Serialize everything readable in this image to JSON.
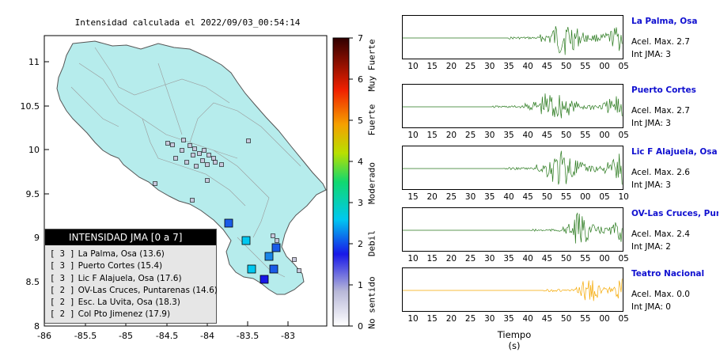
{
  "map": {
    "title": "Intensidad calculada el 2022/09/03_00:54:14",
    "lon_ticks": [
      "-86",
      "-85.5",
      "-85",
      "-84.5",
      "-84",
      "-83.5",
      "-83"
    ],
    "lat_ticks": [
      "11",
      "10.5",
      "10",
      "9.5",
      "9",
      "8.5",
      "8"
    ],
    "legend": {
      "title": "INTENSIDAD JMA [0 a 7]",
      "items": [
        {
          "level": "[ 3 ]",
          "station": "La Palma, Osa (13.6)"
        },
        {
          "level": "[ 3 ]",
          "station": "Puerto Cortes (15.4)"
        },
        {
          "level": "[ 3 ]",
          "station": "Lic F Alajuela, Osa (17.6)"
        },
        {
          "level": "[ 2 ]",
          "station": "OV-Las Cruces, Puntarenas (14.6)"
        },
        {
          "level": "[ 2 ]",
          "station": "Esc. La Uvita, Osa (18.3)"
        },
        {
          "level": "[ 2 ]",
          "station": "Col Pto Jimenez (17.9)"
        }
      ]
    },
    "land_color": "#b6ecec"
  },
  "scale": {
    "ticks": [
      "0",
      "1",
      "2",
      "3",
      "4",
      "5",
      "6",
      "7"
    ],
    "labels": [
      "No sentido",
      "Debil",
      "Moderado",
      "Fuerte",
      "Muy Fuerte"
    ]
  },
  "waveforms": {
    "x_axis_label": "Tiempo (s)",
    "panels": [
      {
        "name": "La Palma, Osa",
        "accel": "Acel. Max. 2.7",
        "jma": "Int JMA: 3",
        "ticks": [
          "10",
          "15",
          "20",
          "25",
          "30",
          "35",
          "40",
          "45",
          "50",
          "55",
          "00",
          "05"
        ],
        "color": "#2a7a1e"
      },
      {
        "name": "Puerto Cortes",
        "accel": "Acel. Max. 2.7",
        "jma": "Int JMA: 3",
        "ticks": [
          "10",
          "15",
          "20",
          "25",
          "30",
          "35",
          "40",
          "45",
          "50",
          "55",
          "00",
          "05"
        ],
        "color": "#2a7a1e"
      },
      {
        "name": "Lic F Alajuela, Osa",
        "accel": "Acel. Max. 2.6",
        "jma": "Int JMA: 3",
        "ticks": [
          "15",
          "20",
          "25",
          "30",
          "35",
          "40",
          "45",
          "50",
          "55",
          "00",
          "05",
          "10"
        ],
        "color": "#2a7a1e"
      },
      {
        "name": "OV-Las Cruces, Puntar",
        "accel": "Acel. Max. 2.4",
        "jma": "Int JMA: 2",
        "ticks": [
          "10",
          "15",
          "20",
          "25",
          "30",
          "35",
          "40",
          "45",
          "50",
          "55",
          "00",
          "05"
        ],
        "color": "#2a7a1e"
      },
      {
        "name": "Teatro Nacional",
        "accel": "Acel. Max. 0.0",
        "jma": "Int JMA: 0",
        "ticks": [
          "10",
          "15",
          "20",
          "25",
          "30",
          "35",
          "40",
          "45",
          "50",
          "55",
          "00",
          "05"
        ],
        "color": "#f5a800"
      }
    ]
  }
}
